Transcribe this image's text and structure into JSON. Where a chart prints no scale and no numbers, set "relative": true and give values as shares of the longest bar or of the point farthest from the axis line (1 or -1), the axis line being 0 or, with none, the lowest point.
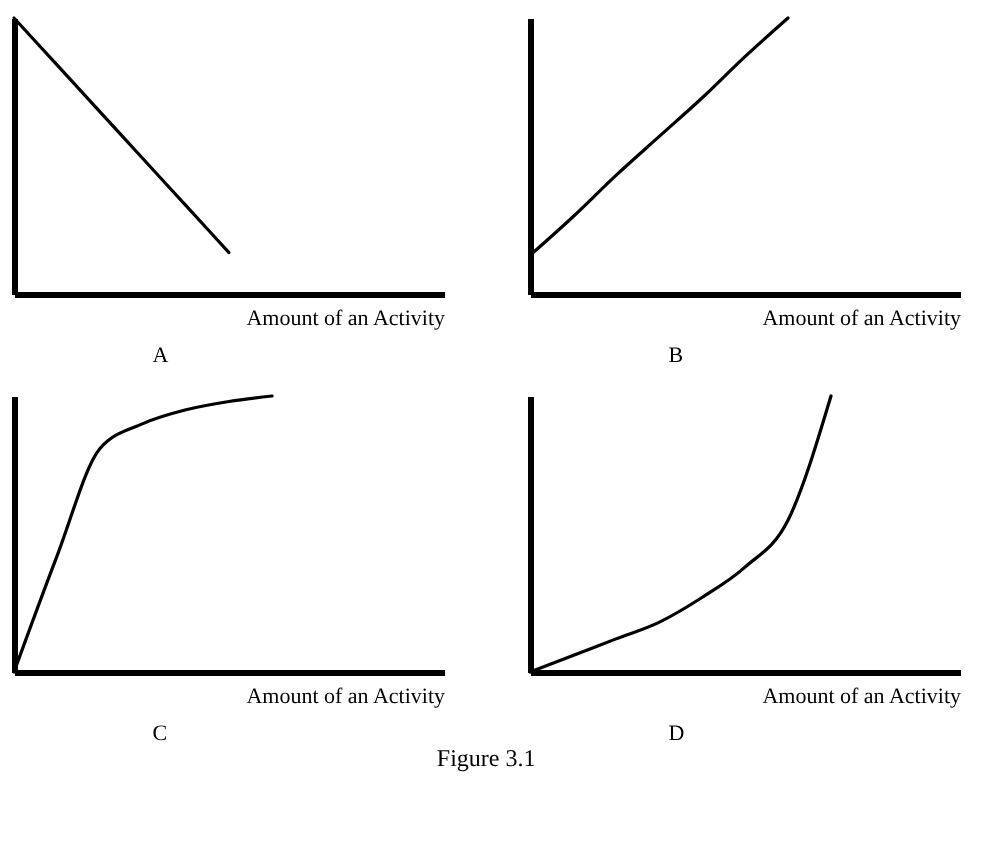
{
  "chart_data": [
    {
      "type": "line",
      "relative": true,
      "xlabel": "Amount of an Activity",
      "annotations": [
        "A"
      ],
      "categories": [
        null,
        null,
        null,
        null,
        null,
        null,
        null,
        null,
        null,
        null,
        null
      ],
      "series": [
        {
          "color": "#000000",
          "values": [
            1,
            0.83,
            0.66,
            0.49,
            0.32,
            0.15,
            null,
            null,
            null,
            null,
            null
          ]
        }
      ]
    },
    {
      "type": "line",
      "relative": true,
      "xlabel": "Amount of an Activity",
      "annotations": [
        "B"
      ],
      "categories": [
        null,
        null,
        null,
        null,
        null,
        null,
        null,
        null,
        null,
        null,
        null
      ],
      "series": [
        {
          "color": "#000000",
          "values": [
            0.14,
            0.28,
            0.43,
            0.57,
            0.71,
            0.86,
            1,
            null,
            null,
            null,
            null
          ]
        }
      ]
    },
    {
      "type": "line",
      "relative": true,
      "xlabel": "Amount of an Activity",
      "annotations": [
        "C"
      ],
      "categories": [
        null,
        null,
        null,
        null,
        null,
        null,
        null,
        null,
        null,
        null,
        null
      ],
      "series": [
        {
          "color": "#000000",
          "values": [
            0,
            0.42,
            0.81,
            0.9,
            0.95,
            0.98,
            1,
            null,
            null,
            null,
            null
          ]
        }
      ]
    },
    {
      "type": "line",
      "relative": true,
      "xlabel": "Amount of an Activity",
      "annotations": [
        "D",
        "Figure 3.1"
      ],
      "categories": [
        null,
        null,
        null,
        null,
        null,
        null,
        null,
        null,
        null,
        null,
        null
      ],
      "series": [
        {
          "color": "#000000",
          "values": [
            0,
            0.06,
            0.12,
            0.18,
            0.27,
            0.38,
            0.55,
            1,
            null,
            null,
            null
          ]
        }
      ]
    }
  ]
}
